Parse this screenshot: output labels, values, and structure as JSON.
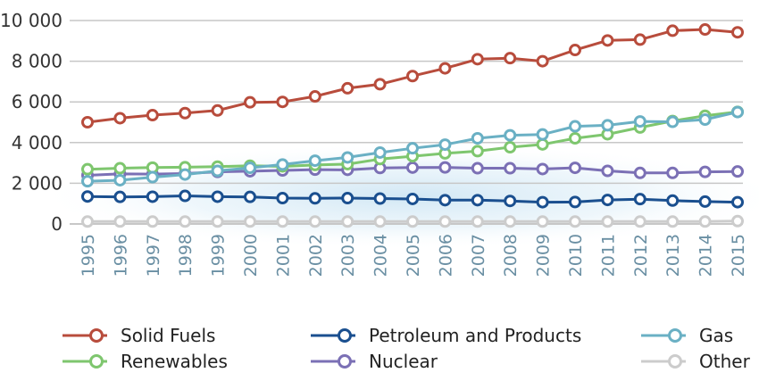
{
  "chart_data": {
    "type": "line",
    "title": "",
    "xlabel": "",
    "ylabel": "",
    "x": [
      "1995",
      "1996",
      "1997",
      "1998",
      "1999",
      "2000",
      "2001",
      "2002",
      "2003",
      "2004",
      "2005",
      "2006",
      "2007",
      "2008",
      "2009",
      "2010",
      "2011",
      "2012",
      "2013",
      "2014",
      "2015"
    ],
    "ylim": [
      0,
      10000
    ],
    "yticks": [
      0,
      2000,
      4000,
      6000,
      8000,
      10000
    ],
    "ytick_labels": [
      "0",
      "2 000",
      "4 000",
      "6 000",
      "8 000",
      "10 000"
    ],
    "grid": true,
    "legend_position": "bottom",
    "series": [
      {
        "name": "Solid Fuels",
        "color": "#b84c3c",
        "values": [
          5000,
          5200,
          5350,
          5450,
          5580,
          5980,
          6000,
          6270,
          6670,
          6870,
          7270,
          7650,
          8100,
          8150,
          8000,
          8550,
          9020,
          9060,
          9500,
          9560,
          9420
        ]
      },
      {
        "name": "Petroleum and Products",
        "color": "#1a4f8f",
        "values": [
          1350,
          1330,
          1340,
          1380,
          1340,
          1330,
          1270,
          1260,
          1270,
          1250,
          1230,
          1170,
          1170,
          1130,
          1070,
          1080,
          1180,
          1220,
          1150,
          1100,
          1070
        ]
      },
      {
        "name": "Gas",
        "color": "#6ab0c4",
        "values": [
          2100,
          2150,
          2300,
          2430,
          2610,
          2760,
          2920,
          3110,
          3270,
          3510,
          3720,
          3900,
          4210,
          4360,
          4400,
          4800,
          4850,
          5040,
          5020,
          5130,
          5500
        ]
      },
      {
        "name": "Renewables",
        "color": "#7ec66e",
        "values": [
          2690,
          2740,
          2770,
          2790,
          2820,
          2860,
          2830,
          2900,
          2940,
          3190,
          3330,
          3470,
          3580,
          3770,
          3910,
          4210,
          4410,
          4740,
          5060,
          5320,
          5510
        ]
      },
      {
        "name": "Nuclear",
        "color": "#7b70b5",
        "values": [
          2390,
          2460,
          2450,
          2480,
          2560,
          2590,
          2630,
          2670,
          2660,
          2750,
          2770,
          2780,
          2740,
          2740,
          2700,
          2760,
          2610,
          2510,
          2510,
          2560,
          2580
        ]
      },
      {
        "name": "Other",
        "color": "#cccccc",
        "values": [
          120,
          120,
          120,
          120,
          120,
          120,
          120,
          120,
          120,
          120,
          120,
          120,
          120,
          120,
          120,
          120,
          120,
          120,
          120,
          120,
          140
        ]
      }
    ]
  }
}
